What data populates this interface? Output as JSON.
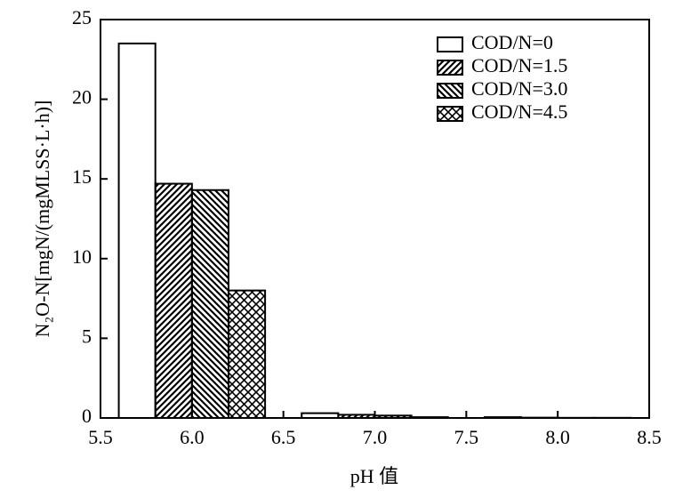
{
  "chart_data": {
    "type": "bar",
    "x": [
      6.0,
      7.0,
      8.0
    ],
    "series": [
      {
        "name": "COD/N=0",
        "color": "#000000",
        "pattern": "none",
        "values": [
          23.5,
          0.3,
          0.05
        ]
      },
      {
        "name": "COD/N=1.5",
        "color": "#000000",
        "pattern": "diagonal-up",
        "values": [
          14.7,
          0.2,
          0.02
        ]
      },
      {
        "name": "COD/N=3.0",
        "color": "#000000",
        "pattern": "diagonal-down",
        "values": [
          14.3,
          0.15,
          0.01
        ]
      },
      {
        "name": "COD/N=4.5",
        "color": "#000000",
        "pattern": "crosshatch",
        "values": [
          8.0,
          0.05,
          0.01
        ]
      }
    ],
    "xlabel": "pH 值",
    "ylabel": "N₂O-N[mgN/(mgMLSS·L·h)]",
    "xlim": [
      5.5,
      8.5
    ],
    "xticks": [
      5.5,
      {
        "value": 6,
        "label": "6.0"
      },
      6.5,
      {
        "value": 7,
        "label": "7.0"
      },
      7.5,
      {
        "value": 8,
        "label": "8.0"
      },
      8.5
    ],
    "ylim": [
      0,
      25
    ],
    "yticks": [
      0,
      5,
      10,
      15,
      20,
      25
    ],
    "legend": "upper-right",
    "grid": false
  }
}
